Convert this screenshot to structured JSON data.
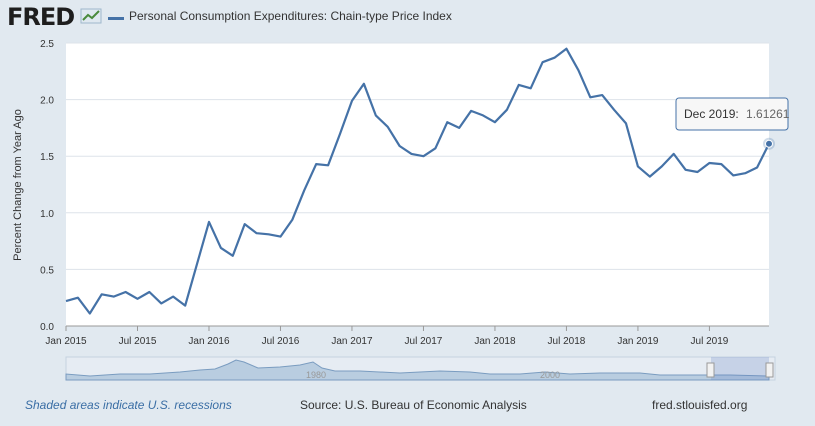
{
  "brand": {
    "logo": "FRED"
  },
  "chart_data": {
    "type": "line",
    "title": "Personal Consumption Expenditures: Chain-type Price Index",
    "xlabel": "",
    "ylabel": "Percent Change from Year Ago",
    "ylim": [
      0,
      2.5
    ],
    "yticks": [
      0.0,
      0.5,
      1.0,
      1.5,
      2.0,
      2.5
    ],
    "ytick_labels": [
      "0.0",
      "0.5",
      "1.0",
      "1.5",
      "2.0",
      "2.5"
    ],
    "xtick_labels": [
      "Jan 2015",
      "Jul 2015",
      "Jan 2016",
      "Jul 2016",
      "Jan 2017",
      "Jul 2017",
      "Jan 2018",
      "Jul 2018",
      "Jan 2019",
      "Jul 2019"
    ],
    "xtick_month_index": [
      0,
      6,
      12,
      18,
      24,
      30,
      36,
      42,
      48,
      54
    ],
    "series": [
      {
        "name": "Personal Consumption Expenditures: Chain-type Price Index",
        "color": "#4572a7",
        "start": "2015-01",
        "values": [
          0.22,
          0.25,
          0.11,
          0.28,
          0.26,
          0.3,
          0.24,
          0.3,
          0.2,
          0.26,
          0.18,
          0.55,
          0.92,
          0.69,
          0.62,
          0.9,
          0.82,
          0.81,
          0.79,
          0.94,
          1.2,
          1.43,
          1.42,
          1.7,
          1.99,
          2.14,
          1.86,
          1.76,
          1.59,
          1.52,
          1.5,
          1.57,
          1.8,
          1.75,
          1.9,
          1.86,
          1.8,
          1.91,
          2.13,
          2.1,
          2.33,
          2.37,
          2.45,
          2.26,
          2.02,
          2.04,
          1.91,
          1.79,
          1.41,
          1.32,
          1.41,
          1.52,
          1.38,
          1.36,
          1.44,
          1.43,
          1.33,
          1.35,
          1.4,
          1.61
        ]
      }
    ],
    "tooltip": {
      "label": "Dec 2019:",
      "value": "1.61261"
    },
    "navigator": {
      "labels": [
        "1980",
        "2000"
      ]
    }
  },
  "footer": {
    "recession_note": "Shaded areas indicate U.S. recessions",
    "source": "Source: U.S. Bureau of Economic Analysis",
    "site": "fred.stlouisfed.org"
  }
}
